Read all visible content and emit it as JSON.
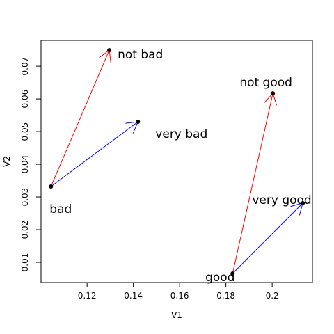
{
  "chart_data": {
    "type": "scatter",
    "x_label": "V1",
    "y_label": "V2",
    "labels": [
      "bad",
      "not bad",
      "very bad",
      "good",
      "not good",
      "very good"
    ],
    "x": [
      0.1044,
      0.1296,
      0.142,
      0.1829,
      0.2003,
      0.2132
    ],
    "values": [
      0.0332,
      0.0749,
      0.053,
      0.0066,
      0.0617,
      0.0281
    ],
    "point_color": "#000000",
    "arrows": [
      {
        "from": "bad",
        "to": "not bad",
        "color": "red"
      },
      {
        "from": "bad",
        "to": "very bad",
        "color": "blue"
      },
      {
        "from": "good",
        "to": "not good",
        "color": "red"
      },
      {
        "from": "good",
        "to": "very good",
        "color": "blue"
      }
    ],
    "xlim": [
      0.1001,
      0.2174
    ],
    "xticks": [
      0.12,
      0.14,
      0.16,
      0.18,
      0.2
    ],
    "ylim": [
      0.00383,
      0.0779
    ],
    "yticks": [
      0.01,
      0.02,
      0.03,
      0.04,
      0.05,
      0.06,
      0.07
    ],
    "grid": false
  }
}
